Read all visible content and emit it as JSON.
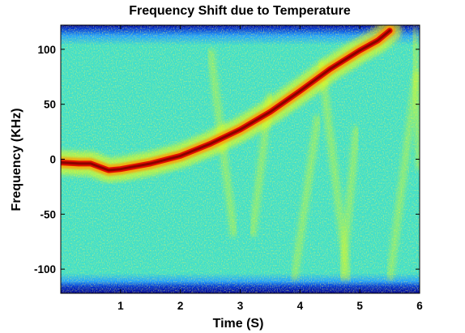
{
  "chart_data": {
    "type": "heatmap",
    "title": "Frequency Shift due to Temperature",
    "xlabel": "Time (S)",
    "ylabel": "Frequency (KHz)",
    "xlim": [
      0,
      6
    ],
    "ylim": [
      -122,
      122
    ],
    "x_ticks": [
      1,
      2,
      3,
      4,
      5,
      6
    ],
    "y_ticks": [
      100,
      50,
      0,
      -50,
      -100
    ],
    "x_tick_labels": [
      "1",
      "2",
      "3",
      "4",
      "5",
      "6"
    ],
    "y_tick_labels": [
      "100",
      "50",
      "0",
      "-50",
      "-100"
    ],
    "colormap": "jet",
    "colors": {
      "background": "#ffffff",
      "low": "#00008f",
      "mid": "#40e0c8",
      "high": "#ffff00",
      "peak": "#8b0000"
    },
    "signal_trace": {
      "x": [
        0.0,
        0.3,
        0.5,
        0.65,
        0.8,
        1.0,
        1.5,
        2.0,
        2.5,
        3.0,
        3.5,
        4.0,
        4.5,
        5.0,
        5.3,
        5.5
      ],
      "y": [
        -3,
        -4,
        -4,
        -7,
        -10,
        -9,
        -4,
        3,
        14,
        27,
        43,
        62,
        82,
        99,
        108,
        117
      ]
    },
    "faint_streaks": [
      {
        "x": [
          2.5,
          2.9
        ],
        "y": [
          100,
          -70
        ]
      },
      {
        "x": [
          3.9,
          4.3
        ],
        "y": [
          -110,
          40
        ]
      },
      {
        "x": [
          4.35,
          4.8
        ],
        "y": [
          90,
          -110
        ]
      },
      {
        "x": [
          4.95,
          4.7
        ],
        "y": [
          30,
          -110
        ]
      },
      {
        "x": [
          5.5,
          5.95
        ],
        "y": [
          -110,
          80
        ]
      },
      {
        "x": [
          6.0,
          5.9
        ],
        "y": [
          -10,
          120
        ]
      },
      {
        "x": [
          3.2,
          3.5
        ],
        "y": [
          -70,
          60
        ]
      }
    ]
  }
}
